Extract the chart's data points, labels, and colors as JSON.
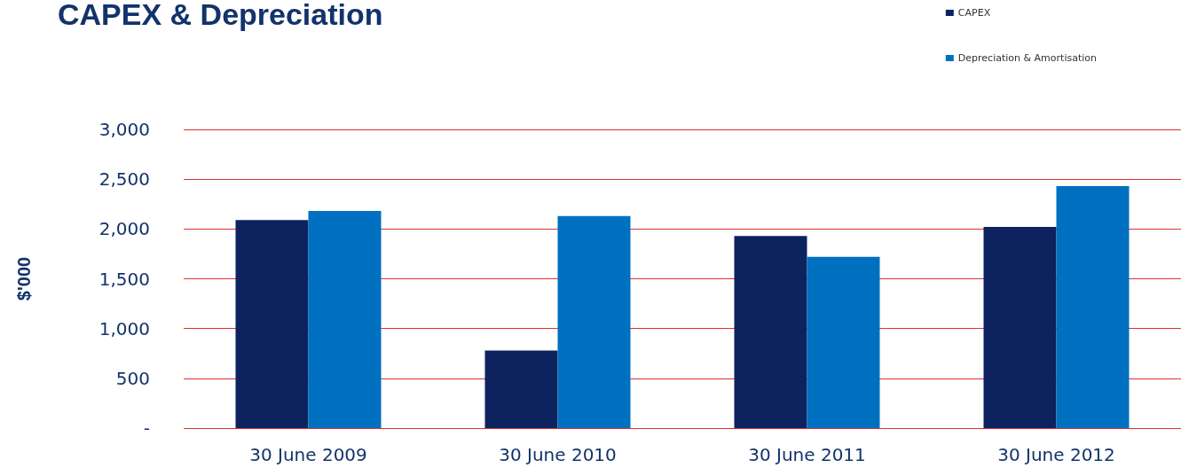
{
  "chart_data": {
    "type": "bar",
    "title": "CAPEX & Depreciation",
    "ylabel": "$'000",
    "categories": [
      "30 June 2009",
      "30 June 2010",
      "30 June 2011",
      "30 June 2012"
    ],
    "series": [
      {
        "name": "CAPEX",
        "color": "#0d2360",
        "values": [
          2090,
          780,
          1930,
          2020
        ]
      },
      {
        "name": "Depreciation & Amortisation",
        "color": "#0070c0",
        "values": [
          2180,
          2130,
          1720,
          2430
        ]
      }
    ],
    "ylim": [
      0,
      3000
    ],
    "yticks": [
      {
        "value": 0,
        "label": "-"
      },
      500,
      {
        "value": 1000,
        "label": "1,000"
      },
      {
        "value": 1500,
        "label": "1,500"
      },
      {
        "value": 2000,
        "label": "2,000"
      },
      {
        "value": 2500,
        "label": "2,500"
      },
      {
        "value": 3000,
        "label": "3,000"
      }
    ],
    "grid": true,
    "legend": "top right"
  }
}
